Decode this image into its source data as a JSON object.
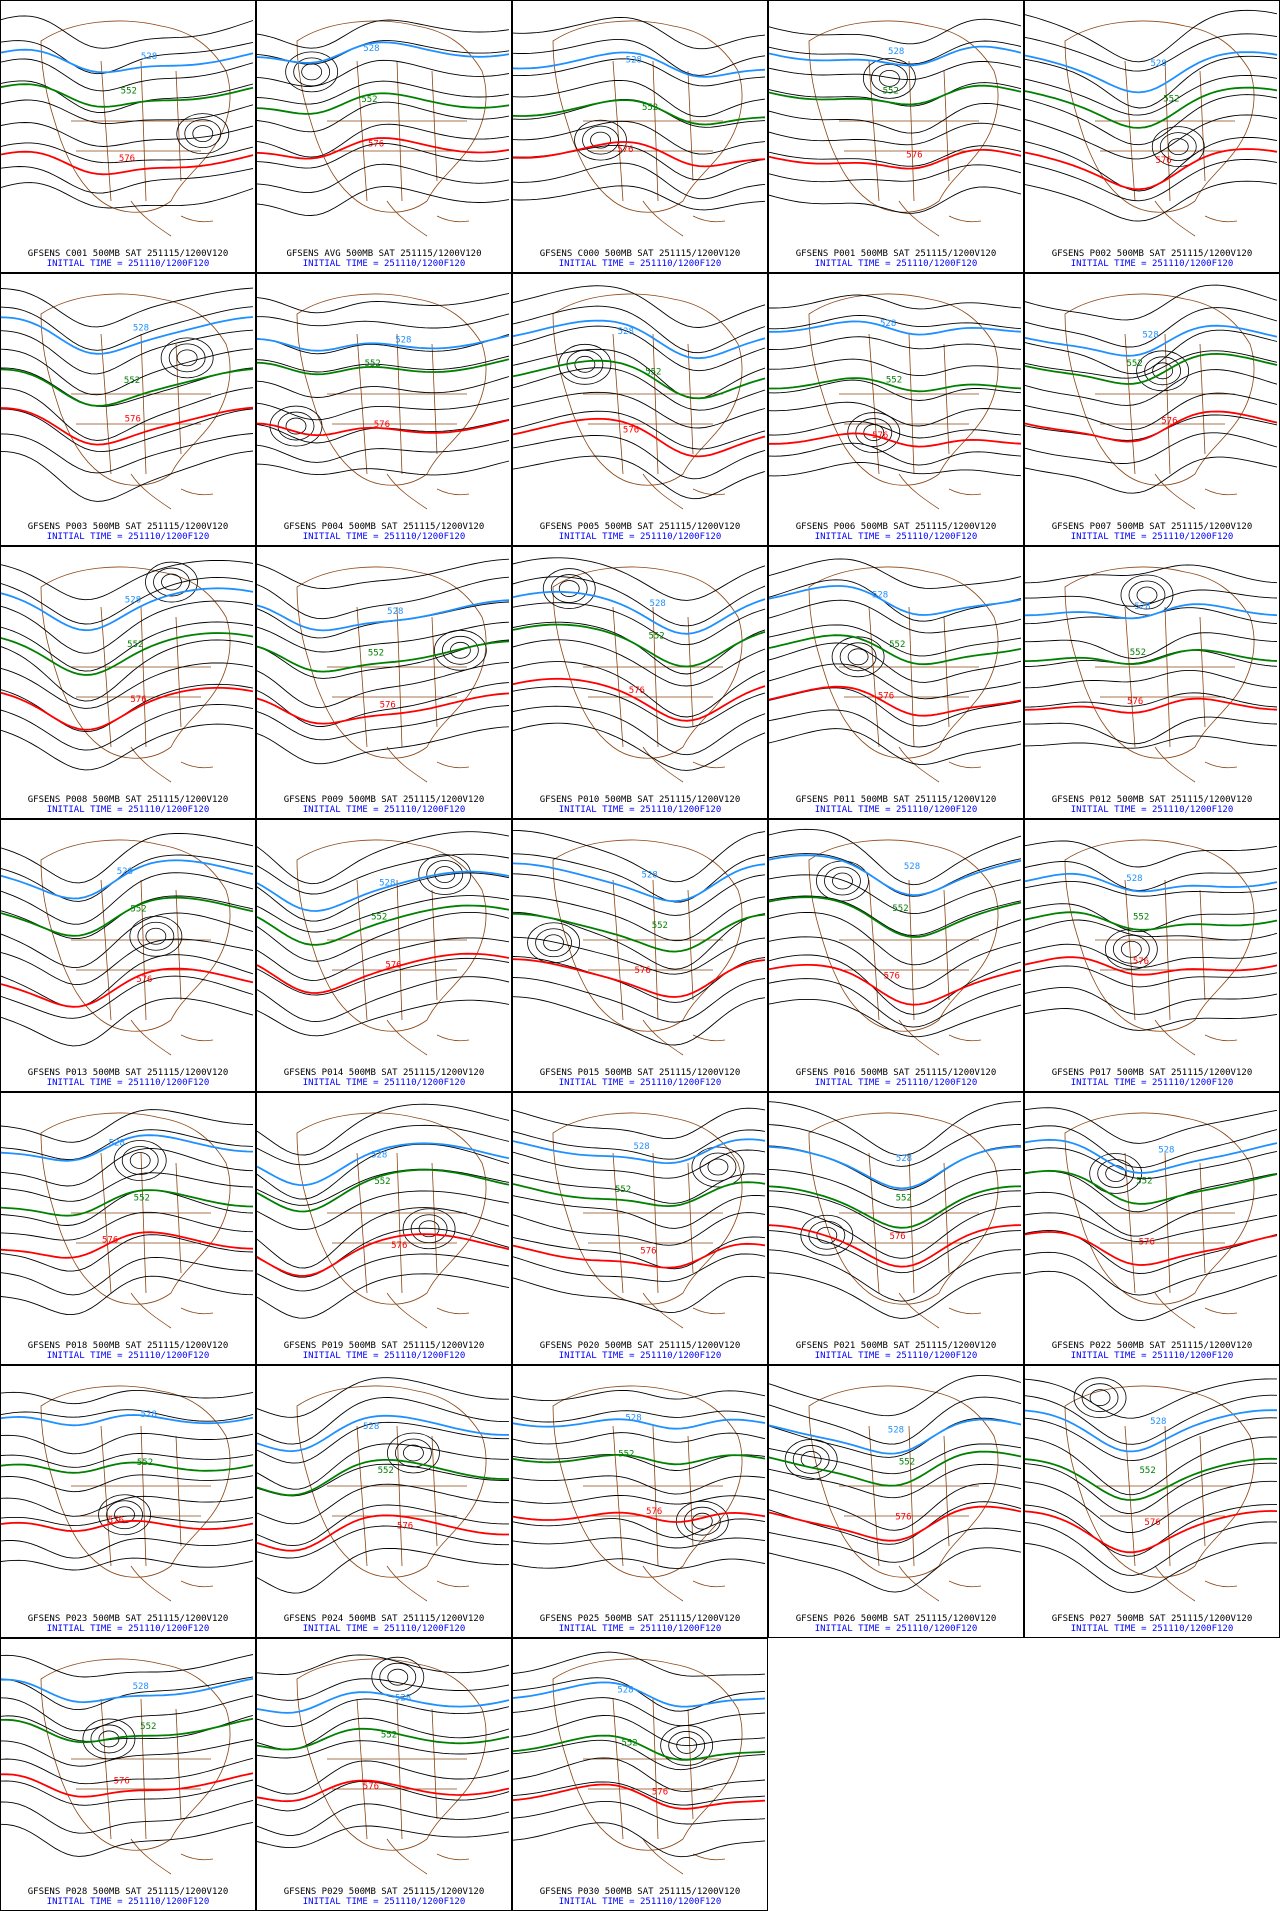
{
  "layout": {
    "columns": 5
  },
  "colors": {
    "black_contour": "#000000",
    "c528": "#1e90ff",
    "c552": "#008000",
    "c576": "#ff0000",
    "map": "#8b4513",
    "caption_line1": "#000000",
    "caption_line2": "#0000ff"
  },
  "contour_labels": {
    "blue": "528",
    "green": "552",
    "red": "576"
  },
  "panels": [
    {
      "line1": "GFSENS C001 500MB SAT 251115/1200V120",
      "line2": "INITIAL TIME = 251110/1200F120"
    },
    {
      "line1": "GFSENS AVG 500MB SAT 251115/1200V120",
      "line2": "INITIAL TIME = 251110/1200F120"
    },
    {
      "line1": "GFSENS C000 500MB SAT 251115/1200V120",
      "line2": "INITIAL TIME = 251110/1200F120"
    },
    {
      "line1": "GFSENS P001 500MB SAT 251115/1200V120",
      "line2": "INITIAL TIME = 251110/1200F120"
    },
    {
      "line1": "GFSENS P002 500MB SAT 251115/1200V120",
      "line2": "INITIAL TIME = 251110/1200F120"
    },
    {
      "line1": "GFSENS P003 500MB SAT 251115/1200V120",
      "line2": "INITIAL TIME = 251110/1200F120"
    },
    {
      "line1": "GFSENS P004 500MB SAT 251115/1200V120",
      "line2": "INITIAL TIME = 251110/1200F120"
    },
    {
      "line1": "GFSENS P005 500MB SAT 251115/1200V120",
      "line2": "INITIAL TIME = 251110/1200F120"
    },
    {
      "line1": "GFSENS P006 500MB SAT 251115/1200V120",
      "line2": "INITIAL TIME = 251110/1200F120"
    },
    {
      "line1": "GFSENS P007 500MB SAT 251115/1200V120",
      "line2": "INITIAL TIME = 251110/1200F120"
    },
    {
      "line1": "GFSENS P008 500MB SAT 251115/1200V120",
      "line2": "INITIAL TIME = 251110/1200F120"
    },
    {
      "line1": "GFSENS P009 500MB SAT 251115/1200V120",
      "line2": "INITIAL TIME = 251110/1200F120"
    },
    {
      "line1": "GFSENS P010 500MB SAT 251115/1200V120",
      "line2": "INITIAL TIME = 251110/1200F120"
    },
    {
      "line1": "GFSENS P011 500MB SAT 251115/1200V120",
      "line2": "INITIAL TIME = 251110/1200F120"
    },
    {
      "line1": "GFSENS P012 500MB SAT 251115/1200V120",
      "line2": "INITIAL TIME = 251110/1200F120"
    },
    {
      "line1": "GFSENS P013 500MB SAT 251115/1200V120",
      "line2": "INITIAL TIME = 251110/1200F120"
    },
    {
      "line1": "GFSENS P014 500MB SAT 251115/1200V120",
      "line2": "INITIAL TIME = 251110/1200F120"
    },
    {
      "line1": "GFSENS P015 500MB SAT 251115/1200V120",
      "line2": "INITIAL TIME = 251110/1200F120"
    },
    {
      "line1": "GFSENS P016 500MB SAT 251115/1200V120",
      "line2": "INITIAL TIME = 251110/1200F120"
    },
    {
      "line1": "GFSENS P017 500MB SAT 251115/1200V120",
      "line2": "INITIAL TIME = 251110/1200F120"
    },
    {
      "line1": "GFSENS P018 500MB SAT 251115/1200V120",
      "line2": "INITIAL TIME = 251110/1200F120"
    },
    {
      "line1": "GFSENS P019 500MB SAT 251115/1200V120",
      "line2": "INITIAL TIME = 251110/1200F120"
    },
    {
      "line1": "GFSENS P020 500MB SAT 251115/1200V120",
      "line2": "INITIAL TIME = 251110/1200F120"
    },
    {
      "line1": "GFSENS P021 500MB SAT 251115/1200V120",
      "line2": "INITIAL TIME = 251110/1200F120"
    },
    {
      "line1": "GFSENS P022 500MB SAT 251115/1200V120",
      "line2": "INITIAL TIME = 251110/1200F120"
    },
    {
      "line1": "GFSENS P023 500MB SAT 251115/1200V120",
      "line2": "INITIAL TIME = 251110/1200F120"
    },
    {
      "line1": "GFSENS P024 500MB SAT 251115/1200V120",
      "line2": "INITIAL TIME = 251110/1200F120"
    },
    {
      "line1": "GFSENS P025 500MB SAT 251115/1200V120",
      "line2": "INITIAL TIME = 251110/1200F120"
    },
    {
      "line1": "GFSENS P026 500MB SAT 251115/1200V120",
      "line2": "INITIAL TIME = 251110/1200F120"
    },
    {
      "line1": "GFSENS P027 500MB SAT 251115/1200V120",
      "line2": "INITIAL TIME = 251110/1200F120"
    },
    {
      "line1": "GFSENS P028 500MB SAT 251115/1200V120",
      "line2": "INITIAL TIME = 251110/1200F120"
    },
    {
      "line1": "GFSENS P029 500MB SAT 251115/1200V120",
      "line2": "INITIAL TIME = 251110/1200F120"
    },
    {
      "line1": "GFSENS P030 500MB SAT 251115/1200V120",
      "line2": "INITIAL TIME = 251110/1200F120"
    }
  ]
}
